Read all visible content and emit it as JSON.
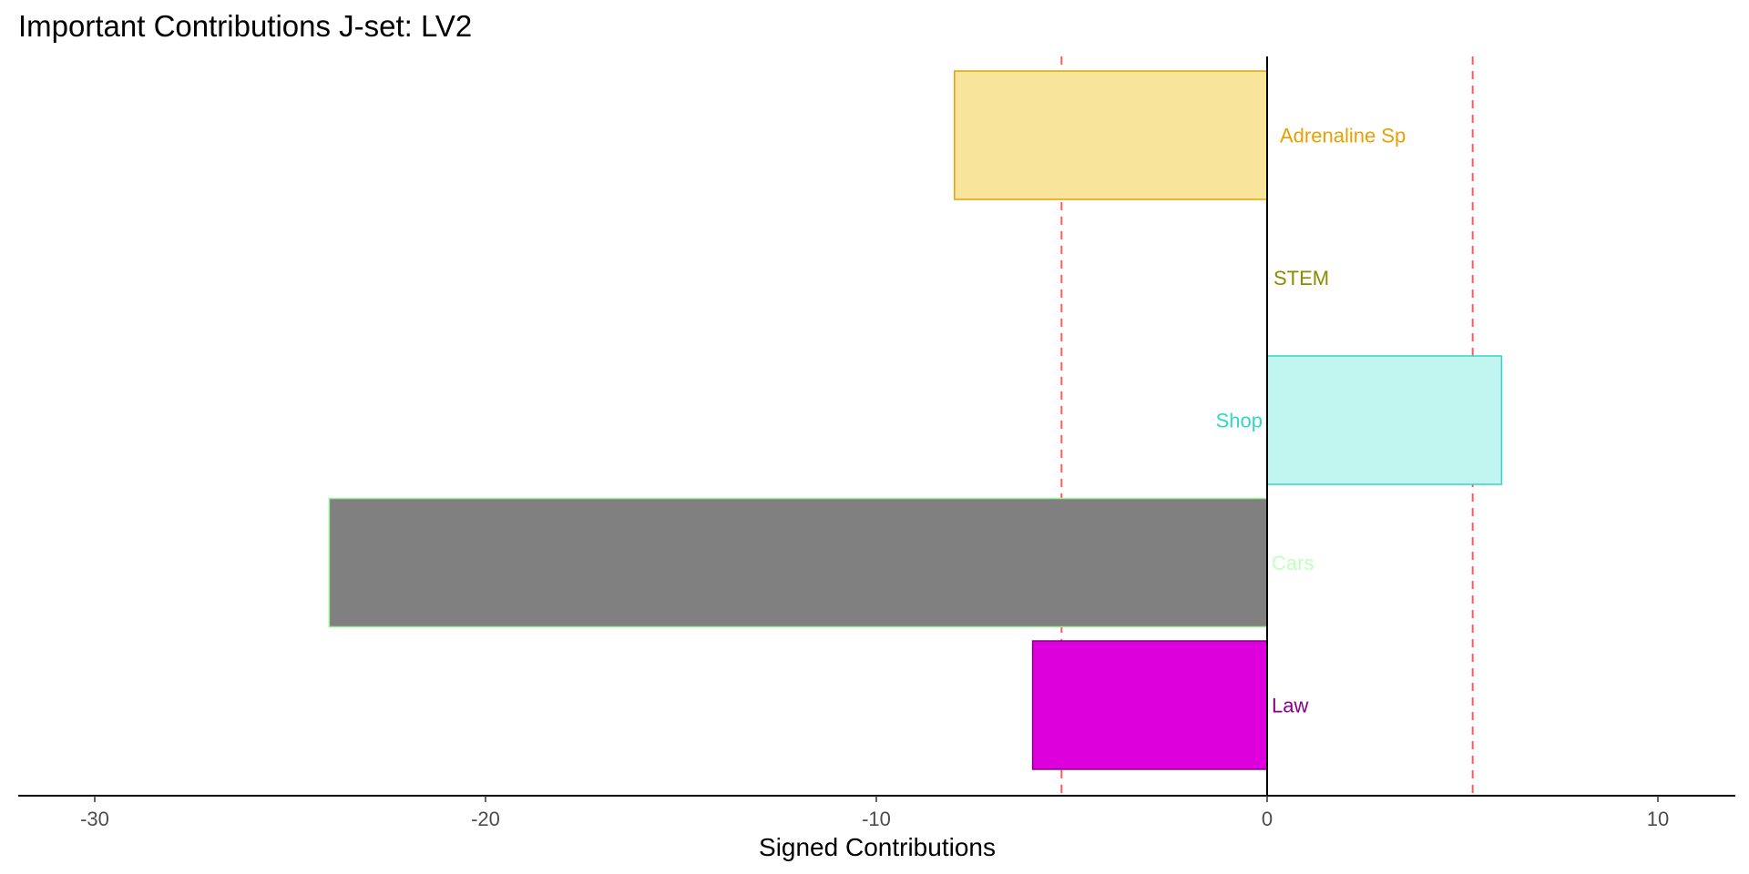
{
  "chart_data": {
    "type": "bar",
    "orientation": "horizontal",
    "title": "Important Contributions J-set: LV2",
    "xlabel": "Signed Contributions",
    "ylabel": "",
    "xlim": [
      -32,
      12
    ],
    "x_ticks": [
      -30,
      -20,
      -10,
      0,
      10
    ],
    "x_tick_labels": [
      "-30",
      "-20",
      "-10",
      "0",
      "10"
    ],
    "threshold_lines": [
      -5.26,
      5.26
    ],
    "threshold_color": "#ff5a5a",
    "grid": false,
    "legend": "none",
    "bars": [
      {
        "label": "Adrenaline Sp",
        "value": -8.0,
        "fill": "#f9e49b",
        "stroke": "#e8a000",
        "label_color": "#e8a000"
      },
      {
        "label": "STEM",
        "value": 0.0,
        "fill": "#ffffff",
        "stroke": "#8b8b00",
        "label_color": "#8b8b00"
      },
      {
        "label": "Shop",
        "value": 6.0,
        "fill": "#c1f5f0",
        "stroke": "#33d6c8",
        "label_color": "#33d6c8"
      },
      {
        "label": "Cars",
        "value": -24.0,
        "fill": "#808080",
        "stroke": "#99ee99",
        "label_color": "#c0ffc0"
      },
      {
        "label": "Law",
        "value": -6.0,
        "fill": "#dd00dd",
        "stroke": "#880088",
        "label_color": "#880088"
      }
    ]
  }
}
